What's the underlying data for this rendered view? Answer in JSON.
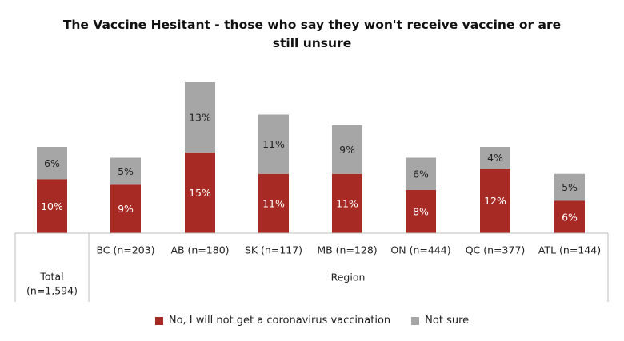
{
  "chart_data": {
    "type": "bar",
    "stacked": true,
    "title": "The Vaccine Hesitant - those who say they won't receive vaccine or are still unsure",
    "categories": [
      "Total (n=1,594)",
      "BC (n=203)",
      "AB (n=180)",
      "SK (n=117)",
      "MB (n=128)",
      "ON (n=444)",
      "QC (n=377)",
      "ATL (n=144)"
    ],
    "group_labels": [
      "Total\n(n=1,594)",
      "Region"
    ],
    "series": [
      {
        "name": "No, I will not get a coronavirus vaccination",
        "color": "#a72a24",
        "values": [
          10,
          9,
          15,
          11,
          11,
          8,
          12,
          6
        ],
        "labels": [
          "10%",
          "9%",
          "15%",
          "11%",
          "11%",
          "8%",
          "12%",
          "6%"
        ]
      },
      {
        "name": "Not sure",
        "color": "#a6a6a6",
        "values": [
          6,
          5,
          13,
          11,
          9,
          6,
          4,
          5
        ],
        "labels": [
          "6%",
          "5%",
          "13%",
          "11%",
          "9%",
          "6%",
          "4%",
          "5%"
        ]
      }
    ],
    "ylim": [
      0,
      30
    ],
    "grid": false,
    "legend_position": "bottom"
  }
}
